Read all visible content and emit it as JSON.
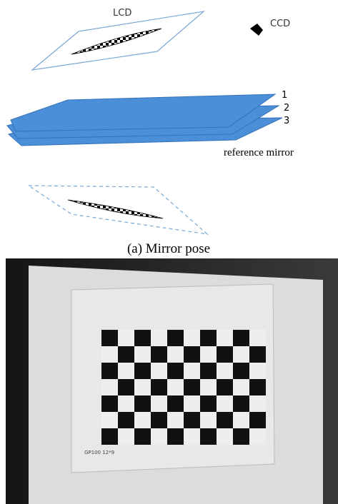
{
  "figure": {
    "labels": {
      "lcd": "LCD",
      "ccd": "CCD",
      "mirror_1": "1",
      "mirror_2": "2",
      "mirror_3": "3",
      "reference": "reference mirror"
    },
    "caption": "(a) Mirror pose",
    "photo_label": "GP100 12*9"
  }
}
